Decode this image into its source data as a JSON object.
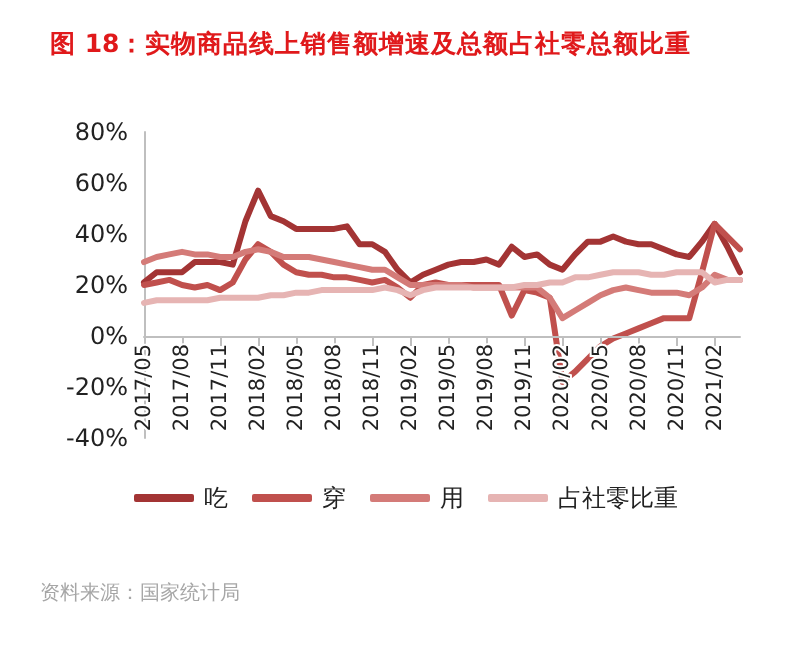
{
  "chart_data": {
    "type": "line",
    "title": "图 18：实物商品线上销售额增速及总额占社零总额比重",
    "categories": [
      "2017/05",
      null,
      null,
      "2017/08",
      null,
      null,
      "2017/11",
      null,
      null,
      "2018/02",
      null,
      null,
      "2018/05",
      null,
      null,
      "2018/08",
      null,
      null,
      "2018/11",
      null,
      null,
      "2019/02",
      null,
      null,
      "2019/05",
      null,
      null,
      "2019/08",
      null,
      null,
      "2019/11",
      null,
      null,
      "2020/02",
      null,
      null,
      "2020/05",
      null,
      null,
      "2020/08",
      null,
      null,
      "2020/11",
      null,
      null,
      "2021/02",
      null,
      null
    ],
    "series": [
      {
        "name": "吃",
        "color": "#a33434",
        "values": [
          21,
          25,
          25,
          25,
          29,
          29,
          29,
          28,
          45,
          57,
          47,
          45,
          42,
          42,
          42,
          42,
          43,
          36,
          36,
          33,
          26,
          21,
          24,
          26,
          28,
          29,
          29,
          30,
          28,
          35,
          31,
          32,
          28,
          26,
          32,
          37,
          37,
          39,
          37,
          36,
          36,
          34,
          32,
          31,
          37,
          44,
          35,
          25
        ]
      },
      {
        "name": "穿",
        "color": "#c0504d",
        "values": [
          20,
          21,
          22,
          20,
          19,
          20,
          18,
          21,
          30,
          36,
          33,
          28,
          25,
          24,
          24,
          23,
          23,
          22,
          21,
          22,
          19,
          15,
          20,
          21,
          20,
          20,
          20,
          20,
          20,
          8,
          18,
          17,
          15,
          -18,
          -14,
          -9,
          -4,
          -1,
          1,
          3,
          5,
          7,
          7,
          7,
          25,
          44,
          39,
          34
        ]
      },
      {
        "name": "用",
        "color": "#d47b78",
        "values": [
          29,
          31,
          32,
          33,
          32,
          32,
          31,
          31,
          33,
          34,
          33,
          31,
          31,
          31,
          30,
          29,
          28,
          27,
          26,
          26,
          23,
          20,
          20,
          20,
          20,
          20,
          19,
          19,
          19,
          19,
          19,
          19,
          15,
          7,
          10,
          13,
          16,
          18,
          19,
          18,
          17,
          17,
          17,
          16,
          19,
          24,
          22,
          22
        ]
      },
      {
        "name": "占社零比重",
        "color": "#e6b4b3",
        "values": [
          13,
          14,
          14,
          14,
          14,
          14,
          15,
          15,
          15,
          15,
          16,
          16,
          17,
          17,
          18,
          18,
          18,
          18,
          18,
          19,
          18,
          16,
          18,
          19,
          19,
          19,
          19,
          19,
          19,
          19,
          20,
          20,
          21,
          21,
          23,
          23,
          24,
          25,
          25,
          25,
          24,
          24,
          25,
          25,
          25,
          21,
          22,
          22
        ]
      }
    ],
    "ylim": [
      -40,
      80
    ],
    "yticks": [
      {
        "value": -40,
        "label": "-40%"
      },
      {
        "value": -20,
        "label": "-20%"
      },
      {
        "value": 0,
        "label": "0%"
      },
      {
        "value": 20,
        "label": "20%"
      },
      {
        "value": 40,
        "label": "40%"
      },
      {
        "value": 60,
        "label": "60%"
      },
      {
        "value": 80,
        "label": "80%"
      }
    ],
    "legend": "bottom",
    "marker": "none",
    "line_style": "solid",
    "annotations": [
      "资料来源：国家统计局"
    ]
  }
}
